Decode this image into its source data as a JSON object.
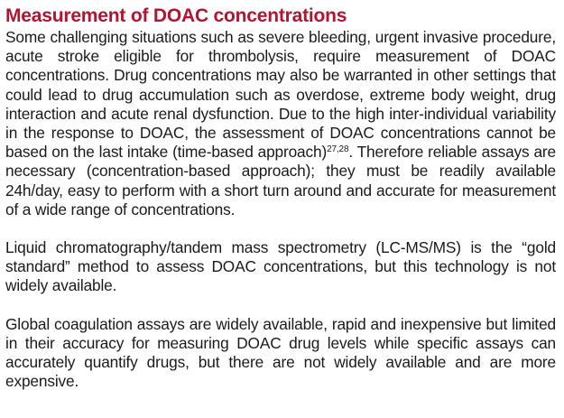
{
  "section": {
    "heading": "Measurement of DOAC concentrations",
    "paragraph1": {
      "text": "Some challenging situations such as severe bleeding, urgent invasive procedure, acute stroke eligible for thrombolysis, require measurement of DOAC concentrations. Drug concentrations may also be warranted in other settings that could lead to drug accumulation such as overdose, extreme body weight, drug interaction and acute renal dysfunction. Due to the high inter-individual variability in the response to DOAC, the assessment of DOAC concentrations cannot be based on the last intake (time-based approach)",
      "citation": "27,28",
      "continuation": ". Therefore reliable assays are necessary (concentration-based approach); they must be readily available 24h/day, easy to perform with a short turn around and accurate for measurement of a wide range of concentrations."
    },
    "paragraph2": "Liquid chromatography/tandem mass spectrometry (LC-MS/MS) is the “gold standard” method to assess DOAC concentrations, but this technology is not widely available.",
    "paragraph3": "Global coagulation assays are widely available, rapid and inexpensive but limited in their accuracy for measuring DOAC drug levels while specific assays can accurately quantify drugs, but there are not widely available and are more expensive."
  },
  "colors": {
    "heading": "#b5132f",
    "text": "#1a1a1a",
    "background": "#ffffff"
  }
}
